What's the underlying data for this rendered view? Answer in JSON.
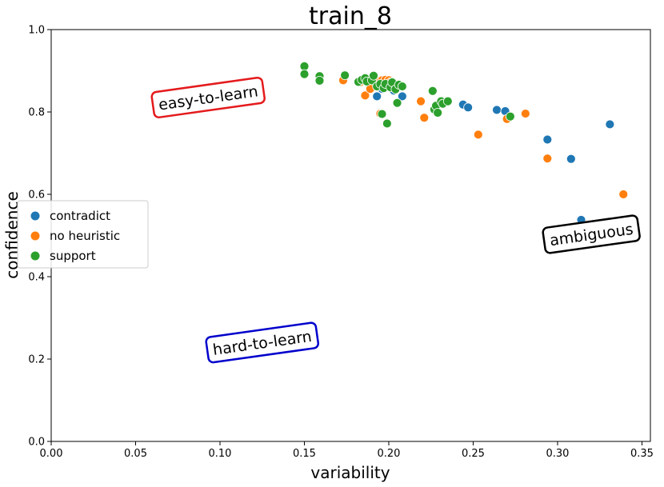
{
  "chart_data": {
    "type": "scatter",
    "title": "train_8",
    "xlabel": "variability",
    "ylabel": "confidence",
    "xlim": [
      0.0,
      0.355
    ],
    "ylim": [
      0.0,
      1.0
    ],
    "xticks": [
      "0.00",
      "0.05",
      "0.10",
      "0.15",
      "0.20",
      "0.25",
      "0.30",
      "0.35"
    ],
    "yticks": [
      "0.0",
      "0.2",
      "0.4",
      "0.6",
      "0.8",
      "1.0"
    ],
    "legend_position": "center-left",
    "colors": {
      "contradict": "#1f77b4",
      "no heuristic": "#ff7f0e",
      "support": "#2ca02c"
    },
    "series": [
      {
        "name": "contradict",
        "points": [
          [
            0.193,
            0.838
          ],
          [
            0.196,
            0.856
          ],
          [
            0.203,
            0.852
          ],
          [
            0.208,
            0.838
          ],
          [
            0.244,
            0.818
          ],
          [
            0.247,
            0.811
          ],
          [
            0.264,
            0.805
          ],
          [
            0.269,
            0.802
          ],
          [
            0.294,
            0.733
          ],
          [
            0.308,
            0.686
          ],
          [
            0.331,
            0.77
          ],
          [
            0.314,
            0.538
          ]
        ]
      },
      {
        "name": "no heuristic",
        "points": [
          [
            0.173,
            0.877
          ],
          [
            0.183,
            0.872
          ],
          [
            0.186,
            0.84
          ],
          [
            0.189,
            0.856
          ],
          [
            0.192,
            0.878
          ],
          [
            0.196,
            0.877
          ],
          [
            0.198,
            0.878
          ],
          [
            0.2,
            0.877
          ],
          [
            0.201,
            0.872
          ],
          [
            0.195,
            0.796
          ],
          [
            0.219,
            0.826
          ],
          [
            0.221,
            0.786
          ],
          [
            0.253,
            0.745
          ],
          [
            0.27,
            0.783
          ],
          [
            0.281,
            0.796
          ],
          [
            0.294,
            0.687
          ],
          [
            0.339,
            0.6
          ]
        ]
      },
      {
        "name": "support",
        "points": [
          [
            0.15,
            0.911
          ],
          [
            0.15,
            0.892
          ],
          [
            0.159,
            0.887
          ],
          [
            0.159,
            0.876
          ],
          [
            0.174,
            0.889
          ],
          [
            0.182,
            0.873
          ],
          [
            0.184,
            0.878
          ],
          [
            0.186,
            0.882
          ],
          [
            0.187,
            0.874
          ],
          [
            0.19,
            0.877
          ],
          [
            0.191,
            0.888
          ],
          [
            0.193,
            0.862
          ],
          [
            0.195,
            0.868
          ],
          [
            0.197,
            0.858
          ],
          [
            0.198,
            0.868
          ],
          [
            0.201,
            0.86
          ],
          [
            0.202,
            0.872
          ],
          [
            0.204,
            0.855
          ],
          [
            0.206,
            0.866
          ],
          [
            0.208,
            0.862
          ],
          [
            0.205,
            0.822
          ],
          [
            0.196,
            0.795
          ],
          [
            0.199,
            0.772
          ],
          [
            0.226,
            0.851
          ],
          [
            0.227,
            0.806
          ],
          [
            0.228,
            0.815
          ],
          [
            0.229,
            0.798
          ],
          [
            0.231,
            0.826
          ],
          [
            0.232,
            0.82
          ],
          [
            0.235,
            0.826
          ],
          [
            0.272,
            0.789
          ]
        ]
      }
    ],
    "annotations": [
      {
        "text": "easy-to-learn",
        "x": 0.093,
        "y": 0.835,
        "rotation": -8,
        "box_color": "#e41a1c"
      },
      {
        "text": "ambiguous",
        "x": 0.32,
        "y": 0.503,
        "rotation": -8,
        "box_color": "#000000"
      },
      {
        "text": "hard-to-learn",
        "x": 0.125,
        "y": 0.24,
        "rotation": -8,
        "box_color": "#0000cc"
      }
    ]
  }
}
